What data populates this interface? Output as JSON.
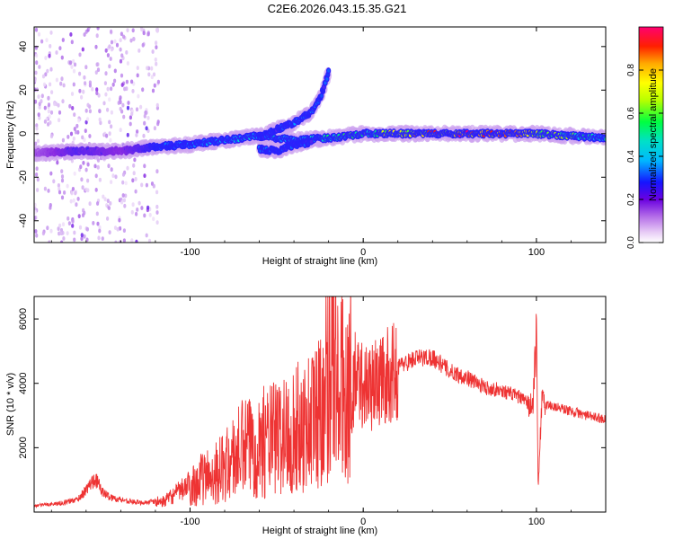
{
  "title": "C2E6.2026.043.15.35.G21",
  "colors": {
    "snr_line": "#ee3333",
    "axis": "#000000",
    "background": "#ffffff"
  },
  "chart_data": [
    {
      "type": "heatmap",
      "name": "spectrogram",
      "xlabel": "Height of straight line (km)",
      "ylabel": "Frequency (Hz)",
      "xlim": [
        -190,
        140
      ],
      "ylim": [
        -50,
        49
      ],
      "xticks": [
        "-100",
        "0",
        "100"
      ],
      "yticks": [
        "-40",
        "-20",
        "0",
        "20",
        "40"
      ],
      "colorbar": {
        "label": "Normalized spectral amplitude",
        "range": [
          0,
          1
        ],
        "ticks": [
          "0.0",
          "0.2",
          "0.4",
          "0.6",
          "0.8"
        ]
      },
      "traces": [
        {
          "name": "main_signal",
          "x": [
            -190,
            -165,
            -140,
            -120,
            -100,
            -80,
            -60,
            -40,
            -20,
            0,
            20,
            60,
            95,
            100,
            120,
            140
          ],
          "freq_hz": [
            -9,
            -8,
            -8,
            -6,
            -5,
            -3,
            -1,
            -3,
            -2,
            0,
            0,
            0,
            0,
            0,
            -1,
            -2
          ],
          "amplitude": [
            0.15,
            0.25,
            0.2,
            0.3,
            0.35,
            0.4,
            0.45,
            0.45,
            0.55,
            0.6,
            0.8,
            0.95,
            0.9,
            0.7,
            0.6,
            0.45
          ]
        },
        {
          "name": "upper_branch",
          "x": [
            -60,
            -50,
            -40,
            -30,
            -25,
            -20
          ],
          "freq_hz": [
            -2,
            2,
            5,
            10,
            16,
            28
          ],
          "amplitude": [
            0.3,
            0.3,
            0.35,
            0.35,
            0.3,
            0.3
          ]
        },
        {
          "name": "lower_branch",
          "x": [
            -60,
            -50,
            -40,
            -30
          ],
          "freq_hz": [
            -7,
            -8,
            -5,
            -4
          ],
          "amplitude": [
            0.35,
            0.3,
            0.3,
            0.3
          ]
        }
      ],
      "noise_regions": [
        {
          "x_start": -190,
          "x_end": -118,
          "freq_range": [
            -50,
            49
          ],
          "amplitude": [
            0.0,
            0.12
          ]
        }
      ]
    },
    {
      "type": "line",
      "name": "snr",
      "xlabel": "Height of straight line (km)",
      "ylabel": "SNR (10 * v/v)",
      "xlim": [
        -190,
        140
      ],
      "ylim": [
        0,
        6700
      ],
      "xticks": [
        "-100",
        "0",
        "100"
      ],
      "yticks": [
        "2000",
        "4000",
        "6000"
      ],
      "series": [
        {
          "name": "SNR",
          "x": [
            -190,
            -175,
            -165,
            -160,
            -155,
            -150,
            -145,
            -130,
            -115,
            -100,
            -90,
            -80,
            -70,
            -60,
            -50,
            -40,
            -30,
            -25,
            -20,
            -18,
            -15,
            -10,
            -5,
            0,
            5,
            10,
            15,
            20,
            30,
            40,
            50,
            60,
            70,
            80,
            90,
            95,
            98,
            100,
            101,
            103,
            110,
            120,
            130,
            140
          ],
          "y": [
            200,
            280,
            400,
            700,
            1100,
            600,
            450,
            300,
            350,
            900,
            1200,
            1500,
            2100,
            2300,
            2500,
            2700,
            3100,
            3500,
            4800,
            6500,
            4000,
            4200,
            4300,
            4100,
            4050,
            4250,
            4400,
            4550,
            4800,
            4850,
            4400,
            4200,
            3900,
            3800,
            3600,
            3400,
            3300,
            5600,
            800,
            3400,
            3300,
            3150,
            3000,
            2900
          ]
        }
      ]
    }
  ]
}
